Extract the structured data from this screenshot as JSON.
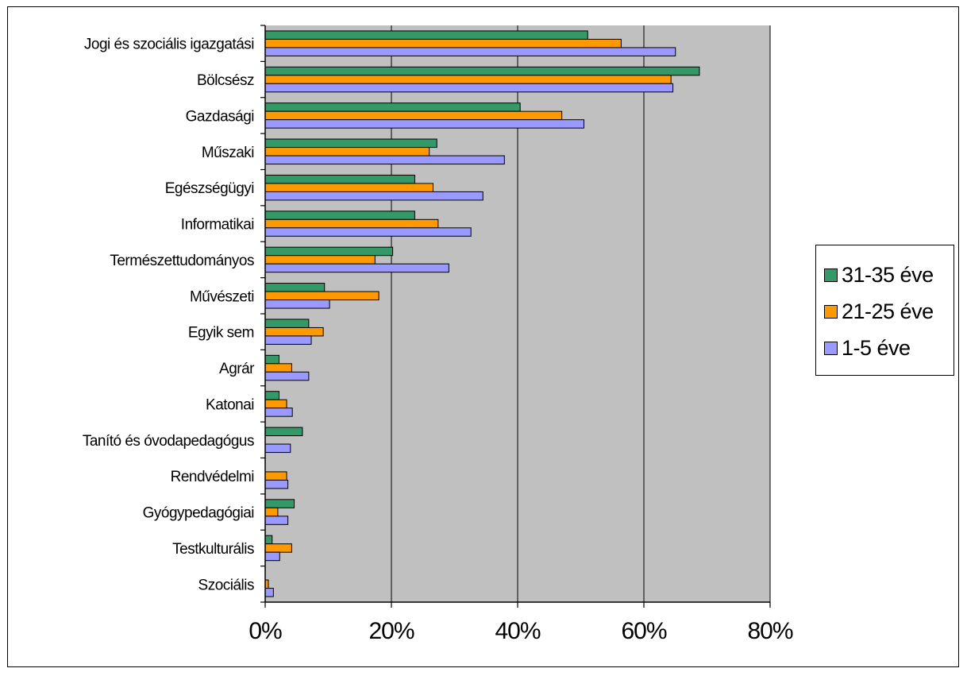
{
  "chart_data": {
    "type": "bar",
    "orientation": "horizontal",
    "categories": [
      "Jogi és szociális igazgatási",
      "Bölcsész",
      "Gazdasági",
      "Műszaki",
      "Egészségügyi",
      "Informatikai",
      "Természettudományos",
      "Művészeti",
      "Egyik sem",
      "Agrár",
      "Katonai",
      "Tanító és óvodapedagógus",
      "Rendvédelmi",
      "Gyógypedagógiai",
      "Testkulturális",
      "Szociális"
    ],
    "series": [
      {
        "name": "31-35 éve",
        "color": "#339966",
        "values": [
          51.1,
          68.8,
          40.4,
          27.2,
          23.7,
          23.7,
          20.2,
          9.4,
          6.9,
          2.2,
          2.2,
          5.9,
          0,
          4.6,
          1.1,
          0
        ]
      },
      {
        "name": "21-25 éve",
        "color": "#ff9900",
        "values": [
          56.4,
          64.3,
          47.0,
          26.0,
          26.6,
          27.4,
          17.4,
          18.0,
          9.2,
          4.2,
          3.4,
          0,
          3.4,
          2.0,
          4.2,
          0.5
        ]
      },
      {
        "name": "1-5 éve",
        "color": "#9999ff",
        "values": [
          65.0,
          64.6,
          50.5,
          37.9,
          34.5,
          32.6,
          29.1,
          10.2,
          7.3,
          6.9,
          4.3,
          4.0,
          3.6,
          3.6,
          2.3,
          1.3
        ]
      }
    ],
    "xticks": [
      "0%",
      "20%",
      "40%",
      "60%",
      "80%"
    ],
    "xlim": [
      0,
      80
    ],
    "grid": true,
    "plot_background": "#c0c0c0",
    "legend_position": "right",
    "title": "",
    "xlabel": "",
    "ylabel": ""
  }
}
